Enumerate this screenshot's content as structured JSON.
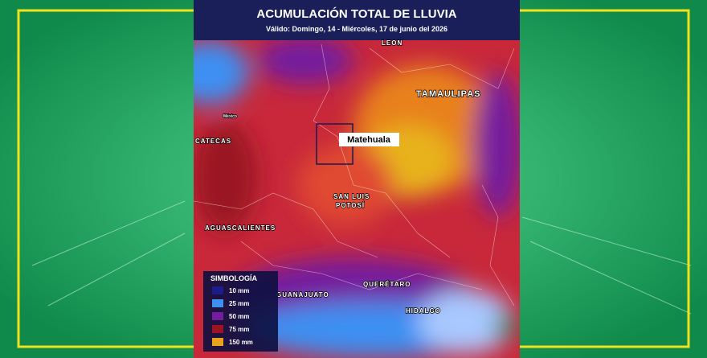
{
  "header": {
    "title": "ACUMULACIÓN TOTAL DE LLUVIA",
    "subtitle": "Válido: Domingo, 14 - Miércoles, 17 de junio del 2026"
  },
  "map": {
    "labels": [
      {
        "text": "LEON"
      },
      {
        "text": "TAMAULIPAS"
      },
      {
        "text": "CATECAS"
      },
      {
        "text": "SAN LUIS"
      },
      {
        "text": "POTOSÍ"
      },
      {
        "text": "AGUASCALIENTES"
      },
      {
        "text": "QUERÉTARO"
      },
      {
        "text": "GUANAJUATO"
      },
      {
        "text": "HIDALGO"
      },
      {
        "text": "México"
      }
    ],
    "highlight": "Matehuala"
  },
  "legend": {
    "title": "SIMBOLOGÍA",
    "items": [
      {
        "label": "10 mm",
        "color": "#1c1c8a"
      },
      {
        "label": "25 mm",
        "color": "#3d8ff2"
      },
      {
        "label": "50 mm",
        "color": "#741c9e"
      },
      {
        "label": "75 mm",
        "color": "#9a1424"
      },
      {
        "label": "150 mm",
        "color": "#e8a21e"
      }
    ]
  }
}
